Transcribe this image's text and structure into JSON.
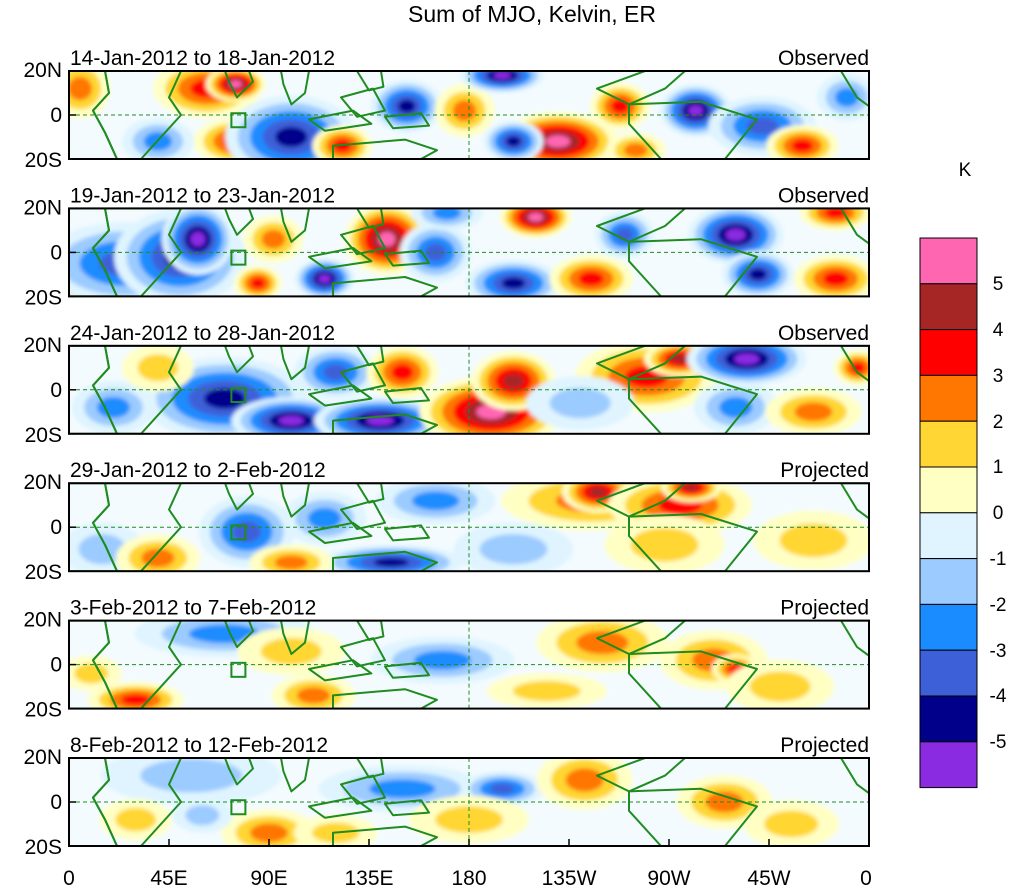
{
  "figure": {
    "title": "Sum of MJO, Kelvin, ER",
    "colorbar": {
      "unit": "K",
      "levels": [
        "5",
        "4",
        "3",
        "2",
        "1",
        "0",
        "-1",
        "-2",
        "-3",
        "-4",
        "-5"
      ],
      "colors": [
        "#ff66b2",
        "#a62626",
        "#ff0000",
        "#ff7700",
        "#ffd633",
        "#ffffc4",
        "#dff4ff",
        "#9ccbff",
        "#1a8cff",
        "#3d60d9",
        "#00008b",
        "#8a2be2"
      ]
    },
    "x_ticks": [
      "0",
      "45E",
      "90E",
      "135E",
      "180",
      "135W",
      "90W",
      "45W",
      "0"
    ],
    "y_ticks": [
      "20N",
      "0",
      "20S"
    ],
    "panels": [
      {
        "date": "14-Jan-2012 to 18-Jan-2012",
        "label": "Observed"
      },
      {
        "date": "19-Jan-2012 to 23-Jan-2012",
        "label": "Observed"
      },
      {
        "date": "24-Jan-2012 to 28-Jan-2012",
        "label": "Observed"
      },
      {
        "date": "29-Jan-2012 to 2-Feb-2012",
        "label": "Projected"
      },
      {
        "date": "3-Feb-2012 to 7-Feb-2012",
        "label": "Projected"
      },
      {
        "date": "8-Feb-2012 to 12-Feb-2012",
        "label": "Projected"
      }
    ],
    "anomalies": [
      [
        {
          "lon": 5,
          "lat": 12,
          "rx": 10,
          "ry": 10,
          "v": 2
        },
        {
          "lon": 40,
          "lat": -12,
          "rx": 12,
          "ry": 8,
          "v": -2
        },
        {
          "lon": 62,
          "lat": 12,
          "rx": 18,
          "ry": 10,
          "v": 3
        },
        {
          "lon": 75,
          "lat": 14,
          "rx": 10,
          "ry": 6,
          "v": 5
        },
        {
          "lon": 75,
          "lat": -12,
          "rx": 14,
          "ry": 8,
          "v": 3
        },
        {
          "lon": 100,
          "lat": -10,
          "rx": 22,
          "ry": 14,
          "v": -4
        },
        {
          "lon": 123,
          "lat": -14,
          "rx": 10,
          "ry": 7,
          "v": 3
        },
        {
          "lon": 152,
          "lat": 4,
          "rx": 12,
          "ry": 9,
          "v": -4
        },
        {
          "lon": 178,
          "lat": 2,
          "rx": 10,
          "ry": 9,
          "v": 2
        },
        {
          "lon": 195,
          "lat": 18,
          "rx": 14,
          "ry": 6,
          "v": -5
        },
        {
          "lon": 220,
          "lat": -12,
          "rx": 20,
          "ry": 10,
          "v": 5
        },
        {
          "lon": 200,
          "lat": -12,
          "rx": 10,
          "ry": 7,
          "v": -4
        },
        {
          "lon": 248,
          "lat": 4,
          "rx": 10,
          "ry": 8,
          "v": 3
        },
        {
          "lon": 282,
          "lat": 2,
          "rx": 12,
          "ry": 9,
          "v": -5
        },
        {
          "lon": 312,
          "lat": -5,
          "rx": 18,
          "ry": 10,
          "v": -3
        },
        {
          "lon": 330,
          "lat": -14,
          "rx": 12,
          "ry": 7,
          "v": 3
        },
        {
          "lon": 255,
          "lat": -16,
          "rx": 10,
          "ry": 6,
          "v": 2
        },
        {
          "lon": 350,
          "lat": 8,
          "rx": 10,
          "ry": 8,
          "v": -2
        }
      ],
      [
        {
          "lon": 8,
          "lat": -12,
          "rx": 14,
          "ry": 10,
          "v": 3
        },
        {
          "lon": 25,
          "lat": -5,
          "rx": 28,
          "ry": 14,
          "v": -3
        },
        {
          "lon": 50,
          "lat": -2,
          "rx": 22,
          "ry": 16,
          "v": -4
        },
        {
          "lon": 58,
          "lat": 6,
          "rx": 12,
          "ry": 12,
          "v": -5
        },
        {
          "lon": 85,
          "lat": -14,
          "rx": 8,
          "ry": 6,
          "v": 3
        },
        {
          "lon": 115,
          "lat": -12,
          "rx": 10,
          "ry": 7,
          "v": -5
        },
        {
          "lon": 92,
          "lat": 6,
          "rx": 10,
          "ry": 8,
          "v": 2
        },
        {
          "lon": 143,
          "lat": 6,
          "rx": 14,
          "ry": 12,
          "v": 5
        },
        {
          "lon": 165,
          "lat": 0,
          "rx": 12,
          "ry": 10,
          "v": -3
        },
        {
          "lon": 200,
          "lat": -14,
          "rx": 16,
          "ry": 8,
          "v": -4
        },
        {
          "lon": 210,
          "lat": 16,
          "rx": 12,
          "ry": 7,
          "v": 5
        },
        {
          "lon": 235,
          "lat": -12,
          "rx": 14,
          "ry": 8,
          "v": 3
        },
        {
          "lon": 250,
          "lat": 8,
          "rx": 10,
          "ry": 8,
          "v": -3
        },
        {
          "lon": 300,
          "lat": 8,
          "rx": 16,
          "ry": 10,
          "v": -5
        },
        {
          "lon": 310,
          "lat": -10,
          "rx": 12,
          "ry": 8,
          "v": -4
        },
        {
          "lon": 345,
          "lat": -12,
          "rx": 14,
          "ry": 8,
          "v": 3
        },
        {
          "lon": 345,
          "lat": 18,
          "rx": 12,
          "ry": 6,
          "v": 3
        },
        {
          "lon": 170,
          "lat": 18,
          "rx": 12,
          "ry": 6,
          "v": -2
        }
      ],
      [
        {
          "lon": 70,
          "lat": -4,
          "rx": 28,
          "ry": 14,
          "v": -4
        },
        {
          "lon": 100,
          "lat": -14,
          "rx": 20,
          "ry": 8,
          "v": -5
        },
        {
          "lon": 140,
          "lat": -14,
          "rx": 22,
          "ry": 8,
          "v": -5
        },
        {
          "lon": 190,
          "lat": -10,
          "rx": 24,
          "ry": 12,
          "v": 5
        },
        {
          "lon": 120,
          "lat": 8,
          "rx": 14,
          "ry": 9,
          "v": -3
        },
        {
          "lon": 150,
          "lat": 8,
          "rx": 12,
          "ry": 9,
          "v": 3
        },
        {
          "lon": 200,
          "lat": 4,
          "rx": 14,
          "ry": 10,
          "v": 4
        },
        {
          "lon": 260,
          "lat": 6,
          "rx": 24,
          "ry": 12,
          "v": 3
        },
        {
          "lon": 275,
          "lat": 14,
          "rx": 12,
          "ry": 6,
          "v": 4
        },
        {
          "lon": 305,
          "lat": 14,
          "rx": 20,
          "ry": 9,
          "v": -5
        },
        {
          "lon": 300,
          "lat": -8,
          "rx": 14,
          "ry": 9,
          "v": -2
        },
        {
          "lon": 335,
          "lat": -10,
          "rx": 16,
          "ry": 8,
          "v": 2
        },
        {
          "lon": 355,
          "lat": 10,
          "rx": 8,
          "ry": 6,
          "v": 3
        },
        {
          "lon": 20,
          "lat": -8,
          "rx": 14,
          "ry": 9,
          "v": -2
        },
        {
          "lon": 40,
          "lat": 10,
          "rx": 12,
          "ry": 8,
          "v": 1
        },
        {
          "lon": 230,
          "lat": -6,
          "rx": 18,
          "ry": 9,
          "v": -1
        }
      ],
      [
        {
          "lon": 15,
          "lat": -10,
          "rx": 14,
          "ry": 9,
          "v": -1
        },
        {
          "lon": 40,
          "lat": -14,
          "rx": 14,
          "ry": 8,
          "v": 2
        },
        {
          "lon": 80,
          "lat": -2,
          "rx": 16,
          "ry": 12,
          "v": -3
        },
        {
          "lon": 115,
          "lat": 4,
          "rx": 14,
          "ry": 9,
          "v": -2
        },
        {
          "lon": 145,
          "lat": -16,
          "rx": 24,
          "ry": 6,
          "v": -4
        },
        {
          "lon": 165,
          "lat": 12,
          "rx": 20,
          "ry": 8,
          "v": -2
        },
        {
          "lon": 235,
          "lat": 12,
          "rx": 30,
          "ry": 10,
          "v": 2
        },
        {
          "lon": 238,
          "lat": 16,
          "rx": 12,
          "ry": 7,
          "v": 4
        },
        {
          "lon": 275,
          "lat": 10,
          "rx": 24,
          "ry": 10,
          "v": 3
        },
        {
          "lon": 268,
          "lat": -8,
          "rx": 20,
          "ry": 10,
          "v": 1
        },
        {
          "lon": 335,
          "lat": -6,
          "rx": 20,
          "ry": 10,
          "v": 1
        },
        {
          "lon": 280,
          "lat": 18,
          "rx": 10,
          "ry": 5,
          "v": 4
        },
        {
          "lon": 200,
          "lat": -10,
          "rx": 20,
          "ry": 9,
          "v": -1
        },
        {
          "lon": 100,
          "lat": -16,
          "rx": 14,
          "ry": 6,
          "v": 2
        }
      ],
      [
        {
          "lon": 70,
          "lat": 14,
          "rx": 30,
          "ry": 8,
          "v": -2
        },
        {
          "lon": 30,
          "lat": -16,
          "rx": 16,
          "ry": 6,
          "v": 3
        },
        {
          "lon": 110,
          "lat": -14,
          "rx": 14,
          "ry": 7,
          "v": 2
        },
        {
          "lon": 168,
          "lat": 2,
          "rx": 24,
          "ry": 8,
          "v": -2
        },
        {
          "lon": 240,
          "lat": 10,
          "rx": 22,
          "ry": 10,
          "v": 2
        },
        {
          "lon": 290,
          "lat": 2,
          "rx": 18,
          "ry": 10,
          "v": 2
        },
        {
          "lon": 300,
          "lat": -2,
          "rx": 8,
          "ry": 5,
          "v": 3
        },
        {
          "lon": 320,
          "lat": -10,
          "rx": 18,
          "ry": 9,
          "v": 1
        },
        {
          "lon": 100,
          "lat": 6,
          "rx": 18,
          "ry": 8,
          "v": 1
        },
        {
          "lon": 215,
          "lat": -12,
          "rx": 20,
          "ry": 6,
          "v": 1
        },
        {
          "lon": 10,
          "lat": -4,
          "rx": 10,
          "ry": 6,
          "v": 1
        }
      ],
      [
        {
          "lon": 55,
          "lat": 12,
          "rx": 30,
          "ry": 10,
          "v": -1
        },
        {
          "lon": 90,
          "lat": -14,
          "rx": 16,
          "ry": 8,
          "v": 2
        },
        {
          "lon": 150,
          "lat": 6,
          "rx": 28,
          "ry": 8,
          "v": -2
        },
        {
          "lon": 195,
          "lat": 6,
          "rx": 14,
          "ry": 6,
          "v": -3
        },
        {
          "lon": 232,
          "lat": 10,
          "rx": 16,
          "ry": 10,
          "v": 2
        },
        {
          "lon": 180,
          "lat": -8,
          "rx": 20,
          "ry": 8,
          "v": 1
        },
        {
          "lon": 295,
          "lat": 0,
          "rx": 16,
          "ry": 9,
          "v": 2
        },
        {
          "lon": 325,
          "lat": -10,
          "rx": 16,
          "ry": 8,
          "v": 1
        },
        {
          "lon": 30,
          "lat": -8,
          "rx": 12,
          "ry": 7,
          "v": 1
        },
        {
          "lon": 60,
          "lat": -6,
          "rx": 10,
          "ry": 6,
          "v": -1
        },
        {
          "lon": 120,
          "lat": -14,
          "rx": 14,
          "ry": 6,
          "v": 1
        }
      ]
    ]
  }
}
